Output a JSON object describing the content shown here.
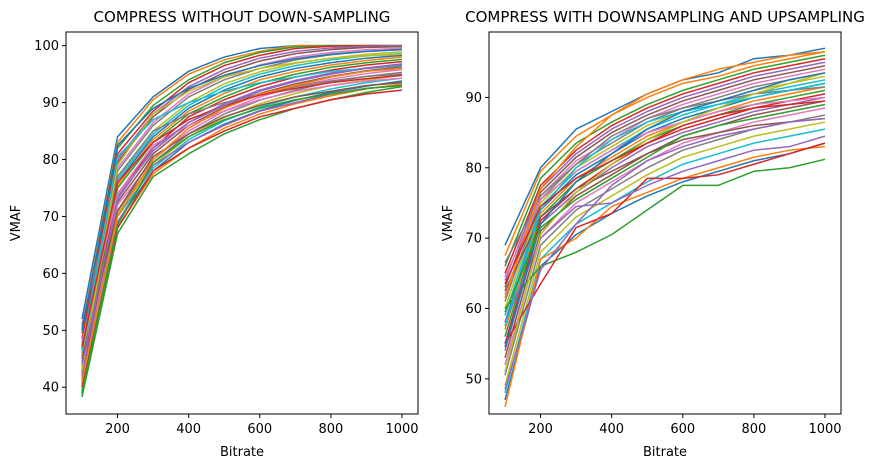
{
  "palette": [
    "#1f77b4",
    "#ff7f0e",
    "#2ca02c",
    "#d62728",
    "#9467bd",
    "#8c564b",
    "#e377c2",
    "#7f7f7f",
    "#bcbd22",
    "#17becf"
  ],
  "chart_data": [
    {
      "type": "line",
      "title": "COMPRESS WITHOUT DOWN-SAMPLING",
      "xlabel": "Bitrate",
      "ylabel": "VMAF",
      "x": [
        100,
        200,
        300,
        400,
        500,
        600,
        700,
        800,
        900,
        1000
      ],
      "xlim": [
        55,
        1045
      ],
      "ylim": [
        35.3,
        102.4
      ],
      "xticks": [
        200,
        400,
        600,
        800,
        1000
      ],
      "yticks": [
        40,
        50,
        60,
        70,
        80,
        90,
        100
      ],
      "grid": false,
      "legend": "none",
      "series": [
        {
          "values": [
            52.0,
            84.0,
            91.0,
            95.5,
            98.0,
            99.5,
            100.0,
            100.0,
            100.0,
            100.0
          ]
        },
        {
          "values": [
            50.5,
            83.0,
            90.5,
            95.0,
            97.5,
            99.0,
            100.0,
            100.0,
            100.0,
            100.0
          ]
        },
        {
          "values": [
            49.5,
            82.0,
            89.5,
            94.0,
            97.0,
            98.8,
            99.8,
            100.0,
            100.0,
            100.0
          ]
        },
        {
          "values": [
            48.5,
            81.0,
            88.5,
            93.5,
            96.5,
            98.3,
            99.5,
            99.9,
            100.0,
            100.0
          ]
        },
        {
          "values": [
            47.5,
            80.0,
            88.0,
            92.8,
            95.8,
            97.8,
            99.0,
            99.6,
            99.9,
            100.0
          ]
        },
        {
          "values": [
            47.0,
            79.5,
            87.5,
            92.3,
            95.3,
            97.3,
            98.6,
            99.3,
            99.7,
            99.8
          ]
        },
        {
          "values": [
            46.0,
            78.5,
            86.5,
            91.5,
            94.5,
            96.6,
            98.0,
            98.8,
            99.3,
            99.5
          ]
        },
        {
          "values": [
            45.5,
            78.0,
            86.0,
            91.0,
            94.0,
            96.0,
            97.5,
            98.4,
            99.0,
            99.3
          ]
        },
        {
          "values": [
            45.0,
            77.0,
            85.0,
            90.0,
            93.3,
            95.4,
            96.9,
            97.8,
            98.5,
            98.9
          ]
        },
        {
          "values": [
            44.5,
            76.5,
            84.5,
            89.5,
            92.8,
            95.0,
            96.5,
            97.5,
            98.2,
            98.6
          ]
        },
        {
          "values": [
            44.0,
            76.0,
            84.0,
            89.0,
            92.2,
            94.5,
            96.0,
            97.0,
            97.8,
            98.3
          ]
        },
        {
          "values": [
            43.5,
            75.5,
            83.5,
            88.5,
            91.6,
            94.0,
            95.5,
            96.6,
            97.4,
            98.0
          ]
        },
        {
          "values": [
            43.0,
            75.0,
            83.0,
            88.0,
            91.0,
            93.4,
            95.0,
            96.2,
            97.0,
            97.6
          ]
        },
        {
          "values": [
            42.5,
            74.0,
            82.0,
            87.5,
            90.5,
            92.8,
            94.5,
            95.7,
            96.6,
            97.2
          ]
        },
        {
          "values": [
            42.0,
            73.5,
            81.5,
            86.5,
            89.8,
            92.2,
            93.9,
            95.2,
            96.1,
            96.8
          ]
        },
        {
          "values": [
            41.5,
            72.5,
            81.0,
            86.0,
            89.2,
            91.6,
            93.3,
            94.6,
            95.6,
            96.3
          ]
        },
        {
          "values": [
            41.0,
            72.0,
            80.0,
            85.0,
            88.5,
            91.0,
            92.8,
            94.1,
            95.1,
            95.8
          ]
        },
        {
          "values": [
            40.5,
            71.0,
            79.5,
            84.5,
            88.0,
            90.4,
            92.2,
            93.6,
            94.6,
            95.3
          ]
        },
        {
          "values": [
            40.0,
            70.5,
            79.0,
            84.0,
            87.4,
            89.8,
            91.6,
            93.0,
            94.0,
            94.8
          ]
        },
        {
          "values": [
            39.5,
            70.0,
            78.5,
            83.5,
            86.8,
            89.2,
            91.0,
            92.4,
            93.5,
            94.3
          ]
        },
        {
          "values": [
            39.0,
            69.0,
            78.0,
            83.0,
            86.2,
            88.6,
            90.4,
            91.8,
            92.9,
            93.8
          ]
        },
        {
          "values": [
            38.5,
            68.0,
            77.5,
            82.0,
            85.5,
            88.0,
            89.8,
            91.2,
            92.4,
            93.3
          ]
        },
        {
          "values": [
            38.3,
            67.0,
            77.0,
            81.0,
            84.5,
            87.0,
            89.0,
            90.5,
            91.8,
            92.8
          ]
        },
        {
          "values": [
            40.0,
            68.0,
            78.0,
            82.0,
            85.0,
            87.5,
            89.0,
            90.5,
            91.5,
            92.2
          ]
        },
        {
          "values": [
            42.0,
            69.0,
            79.0,
            83.0,
            86.0,
            88.5,
            90.0,
            91.5,
            92.5,
            93.0
          ]
        },
        {
          "values": [
            45.0,
            71.0,
            80.5,
            84.5,
            87.5,
            89.5,
            91.0,
            92.0,
            93.0,
            93.5
          ]
        },
        {
          "values": [
            48.0,
            74.0,
            82.5,
            86.0,
            88.5,
            90.5,
            92.0,
            93.0,
            93.8,
            94.3
          ]
        },
        {
          "values": [
            51.0,
            77.0,
            85.0,
            88.0,
            90.0,
            91.5,
            92.8,
            93.8,
            94.6,
            95.0
          ]
        },
        {
          "values": [
            43.0,
            79.0,
            88.0,
            92.0,
            94.5,
            96.0,
            97.0,
            97.8,
            98.2,
            98.5
          ]
        },
        {
          "values": [
            46.5,
            80.5,
            87.0,
            90.0,
            92.0,
            93.5,
            94.5,
            95.5,
            96.0,
            96.5
          ]
        },
        {
          "values": [
            50.0,
            82.5,
            89.0,
            92.5,
            94.8,
            96.5,
            97.7,
            98.5,
            99.0,
            99.3
          ]
        },
        {
          "values": [
            41.0,
            70.0,
            80.0,
            85.5,
            89.0,
            91.5,
            93.0,
            94.5,
            95.5,
            96.0
          ]
        },
        {
          "values": [
            39.0,
            68.5,
            79.5,
            84.0,
            87.0,
            89.0,
            90.5,
            91.5,
            92.5,
            93.0
          ]
        },
        {
          "values": [
            47.0,
            76.0,
            83.0,
            87.0,
            89.5,
            91.3,
            92.5,
            93.5,
            94.2,
            94.8
          ]
        },
        {
          "values": [
            44.0,
            73.0,
            82.0,
            86.5,
            89.5,
            92.0,
            93.7,
            95.0,
            96.0,
            96.7
          ]
        }
      ]
    },
    {
      "type": "line",
      "title": "COMPRESS WITH DOWNSAMPLING AND UPSAMPLING",
      "xlabel": "Bitrate",
      "ylabel": "VMAF",
      "x": [
        100,
        200,
        300,
        400,
        500,
        600,
        700,
        800,
        900,
        1000
      ],
      "xlim": [
        55,
        1045
      ],
      "ylim": [
        45.0,
        99.3
      ],
      "xticks": [
        200,
        400,
        600,
        800,
        1000
      ],
      "yticks": [
        50,
        60,
        70,
        80,
        90
      ],
      "grid": false,
      "legend": "none",
      "series": [
        {
          "values": [
            69.0,
            80.0,
            85.5,
            88.0,
            90.5,
            92.5,
            93.5,
            95.5,
            96.0,
            97.0
          ]
        },
        {
          "values": [
            67.5,
            79.5,
            84.5,
            87.5,
            90.0,
            92.0,
            93.0,
            94.5,
            95.5,
            96.5
          ]
        },
        {
          "values": [
            66.0,
            78.5,
            83.5,
            86.5,
            89.0,
            91.0,
            92.5,
            94.0,
            95.0,
            96.0
          ]
        },
        {
          "values": [
            65.0,
            77.5,
            82.5,
            86.0,
            88.5,
            90.5,
            92.0,
            93.5,
            94.5,
            95.5
          ]
        },
        {
          "values": [
            64.0,
            77.0,
            82.0,
            85.5,
            88.0,
            90.0,
            91.5,
            93.0,
            94.0,
            95.0
          ]
        },
        {
          "values": [
            63.0,
            76.5,
            81.5,
            85.0,
            87.5,
            89.5,
            91.0,
            92.5,
            93.5,
            94.5
          ]
        },
        {
          "values": [
            62.0,
            76.0,
            81.0,
            84.0,
            87.0,
            89.0,
            90.5,
            92.0,
            93.0,
            94.0
          ]
        },
        {
          "values": [
            61.0,
            75.5,
            80.5,
            83.5,
            86.5,
            88.5,
            90.0,
            91.5,
            92.5,
            93.5
          ]
        },
        {
          "values": [
            60.0,
            75.0,
            80.0,
            83.0,
            86.0,
            88.0,
            89.5,
            91.0,
            92.0,
            93.0
          ]
        },
        {
          "values": [
            59.0,
            74.5,
            79.5,
            82.5,
            85.5,
            87.5,
            89.0,
            90.5,
            91.5,
            92.5
          ]
        },
        {
          "values": [
            58.0,
            74.0,
            79.0,
            82.0,
            85.0,
            87.0,
            88.5,
            90.0,
            91.0,
            92.0
          ]
        },
        {
          "values": [
            57.0,
            73.5,
            78.5,
            81.5,
            84.5,
            86.5,
            88.0,
            89.5,
            90.5,
            91.5
          ]
        },
        {
          "values": [
            56.0,
            73.0,
            78.0,
            81.0,
            84.0,
            86.0,
            87.5,
            89.0,
            90.0,
            91.0
          ]
        },
        {
          "values": [
            55.0,
            72.5,
            77.0,
            80.5,
            83.5,
            85.5,
            87.0,
            88.5,
            89.5,
            90.5
          ]
        },
        {
          "values": [
            54.0,
            72.0,
            76.5,
            80.0,
            83.0,
            85.0,
            86.5,
            88.0,
            89.0,
            90.0
          ]
        },
        {
          "values": [
            53.0,
            71.0,
            76.0,
            79.0,
            82.0,
            84.5,
            86.0,
            87.5,
            88.5,
            89.5
          ]
        },
        {
          "values": [
            52.0,
            70.0,
            75.0,
            78.0,
            81.0,
            83.5,
            85.0,
            86.5,
            87.5,
            88.5
          ]
        },
        {
          "values": [
            50.5,
            69.0,
            74.0,
            77.0,
            80.0,
            82.5,
            84.0,
            85.5,
            86.5,
            87.5
          ]
        },
        {
          "values": [
            49.0,
            68.0,
            73.0,
            76.0,
            79.0,
            81.5,
            83.0,
            84.5,
            85.5,
            86.5
          ]
        },
        {
          "values": [
            48.0,
            67.0,
            72.0,
            75.0,
            78.0,
            80.5,
            82.0,
            83.5,
            84.5,
            85.5
          ]
        },
        {
          "values": [
            47.0,
            66.0,
            70.5,
            73.5,
            76.0,
            78.0,
            79.5,
            81.0,
            82.0,
            83.5
          ]
        },
        {
          "values": [
            46.0,
            67.0,
            70.0,
            74.5,
            76.5,
            78.5,
            80.0,
            81.5,
            82.5,
            83.0
          ]
        },
        {
          "values": [
            60.0,
            66.0,
            68.0,
            70.5,
            74.0,
            77.5,
            77.5,
            79.5,
            80.0,
            81.2
          ]
        },
        {
          "values": [
            55.0,
            63.5,
            71.5,
            73.5,
            78.5,
            78.5,
            79.0,
            80.5,
            82.0,
            83.5
          ]
        },
        {
          "values": [
            58.0,
            70.0,
            74.5,
            75.0,
            77.5,
            79.5,
            81.0,
            82.5,
            83.0,
            84.5
          ]
        },
        {
          "values": [
            62.5,
            73.0,
            77.0,
            79.5,
            82.0,
            84.0,
            85.0,
            86.0,
            86.5,
            87.0
          ]
        },
        {
          "values": [
            64.5,
            75.5,
            79.5,
            82.5,
            85.0,
            86.5,
            88.0,
            89.0,
            89.5,
            90.0
          ]
        },
        {
          "values": [
            66.5,
            76.0,
            80.5,
            84.5,
            87.0,
            88.5,
            89.5,
            90.5,
            91.0,
            91.5
          ]
        },
        {
          "values": [
            51.0,
            70.5,
            76.5,
            80.5,
            84.0,
            86.5,
            88.5,
            90.5,
            92.0,
            93.5
          ]
        },
        {
          "values": [
            57.5,
            74.0,
            80.0,
            84.0,
            86.5,
            88.0,
            89.0,
            90.0,
            91.0,
            92.0
          ]
        },
        {
          "values": [
            54.5,
            72.0,
            78.0,
            82.0,
            85.5,
            88.0,
            89.5,
            91.0,
            92.5,
            93.5
          ]
        },
        {
          "values": [
            61.5,
            77.0,
            83.0,
            87.5,
            90.5,
            92.5,
            94.0,
            95.0,
            96.0,
            96.5
          ]
        },
        {
          "values": [
            59.5,
            71.5,
            75.5,
            78.5,
            81.5,
            84.5,
            86.0,
            87.0,
            88.0,
            89.0
          ]
        },
        {
          "values": [
            63.5,
            74.5,
            78.5,
            81.0,
            83.5,
            86.0,
            87.5,
            88.5,
            89.0,
            89.5
          ]
        },
        {
          "values": [
            48.5,
            65.5,
            72.0,
            77.5,
            81.0,
            83.0,
            84.5,
            85.5,
            86.5,
            87.0
          ]
        }
      ]
    }
  ]
}
